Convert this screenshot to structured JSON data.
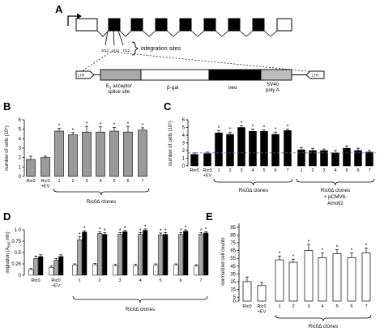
{
  "panel_a": {
    "label": "A",
    "site_labels": [
      "3/12",
      "2/12",
      "7/12"
    ],
    "integration_label": "integration sites",
    "ltr_left": "LTR",
    "ltr_right": "LTR",
    "segments": {
      "acceptor": [
        "E",
        "2",
        " acceptor",
        "splice site"
      ],
      "bgal": "β-gal",
      "neo": "neo",
      "sv40": [
        "SV40",
        "poly A"
      ]
    },
    "exon_count": 9
  },
  "chart_data": [
    {
      "panel": "B",
      "type": "bar",
      "ylabel": "number of cells (10⁵)",
      "ylim": [
        0,
        6
      ],
      "yticks": [
        0,
        1,
        2,
        3,
        4,
        5,
        6
      ],
      "categories": [
        "Ric0",
        "Ric0 +EV",
        "1",
        "2",
        "3",
        "4",
        "5",
        "6",
        "7"
      ],
      "values": [
        1.8,
        2.0,
        4.8,
        4.4,
        4.7,
        4.7,
        4.8,
        4.7,
        4.9
      ],
      "errors": [
        0.35,
        0.15,
        0.3,
        0.25,
        0.6,
        0.55,
        0.4,
        0.6,
        0.25
      ],
      "significant": [
        false,
        false,
        true,
        true,
        true,
        true,
        true,
        true,
        true
      ],
      "group_label": "Ric0∆ clones",
      "fill": "#9a9a9a"
    },
    {
      "panel": "C",
      "type": "bar",
      "ylabel": "number of cells (10⁵)",
      "ylim": [
        0,
        6
      ],
      "yticks": [
        0,
        1,
        2,
        3,
        4,
        5,
        6
      ],
      "categories": [
        "Ric0",
        "Ric0 +EV",
        "1",
        "2",
        "3",
        "4",
        "5",
        "6",
        "7",
        "1",
        "2",
        "3",
        "4",
        "5",
        "6",
        "7"
      ],
      "values": [
        1.5,
        1.6,
        4.3,
        4.1,
        5.0,
        4.5,
        4.5,
        4.1,
        4.6,
        2.1,
        2.0,
        2.0,
        1.7,
        2.3,
        2.0,
        1.8
      ],
      "errors": [
        0.2,
        0.2,
        0.3,
        0.3,
        0.2,
        0.3,
        0.2,
        0.3,
        0.2,
        0.3,
        0.3,
        0.2,
        0.3,
        0.3,
        0.3,
        0.2
      ],
      "significant": [
        false,
        false,
        true,
        true,
        true,
        true,
        true,
        true,
        true,
        false,
        false,
        false,
        false,
        false,
        false,
        false
      ],
      "reference_line": 1.7,
      "group_labels": [
        "Ric0∆ clones",
        "Ric0∆ clones",
        "+ pCMV6-",
        "Amotl2"
      ],
      "fill": "#000000"
    },
    {
      "panel": "D",
      "type": "bar",
      "ylabel": "migration (A",
      "ylabel_sub": "595",
      "ylabel_tail": " nm)",
      "ylim": [
        0,
        1.0
      ],
      "yticks": [
        "0",
        "0.25",
        "0.5",
        "0.75",
        "1.0"
      ],
      "categories": [
        "Ric0",
        "Ric0 +EV",
        "1",
        "2",
        "3",
        "4",
        "5",
        "6",
        "7"
      ],
      "series": [
        {
          "color": "#ffffff",
          "values": [
            0.12,
            0.17,
            0.22,
            0.23,
            0.21,
            0.21,
            0.22,
            0.22,
            0.2
          ],
          "errors": [
            0.03,
            0.03,
            0.03,
            0.03,
            0.03,
            0.03,
            0.03,
            0.03,
            0.03
          ]
        },
        {
          "color": "#a6a6a6",
          "values": [
            0.37,
            0.33,
            0.78,
            0.92,
            0.9,
            0.9,
            0.89,
            0.9,
            0.9
          ],
          "errors": [
            0.05,
            0.04,
            0.07,
            0.04,
            0.04,
            0.04,
            0.04,
            0.04,
            0.04
          ]
        },
        {
          "color": "#000000",
          "values": [
            0.41,
            0.41,
            0.95,
            0.9,
            0.96,
            0.99,
            0.9,
            0.97,
            0.93
          ],
          "errors": [
            0.04,
            0.04,
            0.03,
            0.04,
            0.03,
            0.03,
            0.04,
            0.03,
            0.03
          ]
        }
      ],
      "significant": [
        false,
        false,
        true,
        true,
        true,
        true,
        true,
        true,
        true
      ],
      "group_label": "Ric0∆ clones"
    },
    {
      "panel": "E",
      "type": "bar",
      "ylabel": "normalized cell counts",
      "ylim": [
        0,
        100
      ],
      "yticks": [
        0,
        5,
        15,
        25,
        35,
        45,
        55,
        65,
        75,
        85,
        95
      ],
      "yticks_labels": [
        "0",
        "5",
        "15",
        "25",
        "35",
        "45",
        "55",
        "65",
        "75",
        "85",
        "95"
      ],
      "categories": [
        "Ric0",
        "Ric0 +EV",
        "1",
        "2",
        "3",
        "4",
        "5",
        "6",
        "7"
      ],
      "values": [
        25,
        20,
        53,
        50,
        65,
        56,
        61,
        56,
        62
      ],
      "errors": [
        6,
        4,
        5,
        4,
        8,
        6,
        5,
        6,
        6
      ],
      "significant": [
        false,
        false,
        true,
        true,
        true,
        true,
        true,
        true,
        true
      ],
      "group_label": "Ric0∆ clones",
      "fill": "#ffffff"
    }
  ]
}
